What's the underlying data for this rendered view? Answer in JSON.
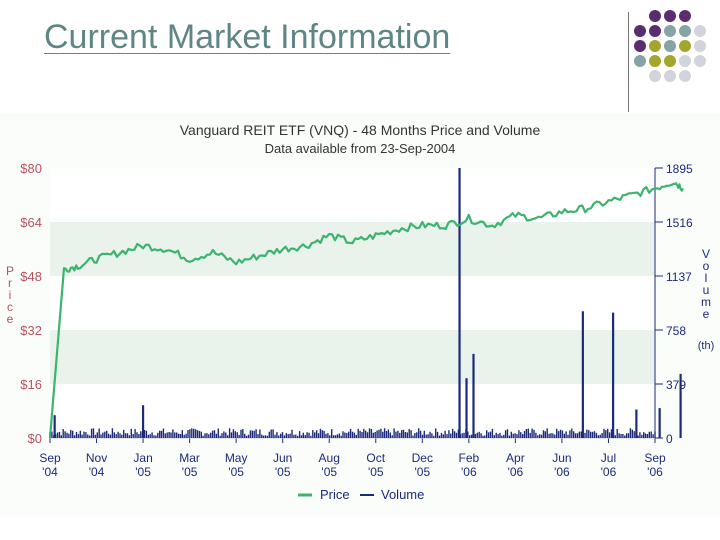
{
  "slide": {
    "title": "Current Market Information"
  },
  "decor": {
    "dot_colors": [
      "#5b2d6e",
      "#a3a62b",
      "#86a3a6",
      "#d3d3dc"
    ],
    "dot_grid": [
      [
        -1,
        0,
        0,
        0,
        -1
      ],
      [
        0,
        0,
        2,
        2,
        3
      ],
      [
        0,
        1,
        2,
        1,
        3
      ],
      [
        2,
        1,
        1,
        3,
        3
      ],
      [
        -1,
        3,
        3,
        3,
        -1
      ]
    ]
  },
  "colors": {
    "price": "#3cb46e",
    "volume": "#1c2a7c",
    "label": "#b5515e",
    "axis_text": "#1c2a7c",
    "band": "#e9f3ec"
  },
  "chart_data": {
    "type": "line",
    "title": "Vanguard REIT ETF (VNQ) - 48 Months Price and Volume",
    "subtitle": "Data available from 23-Sep-2004",
    "ylabel_left": "Price",
    "ylabel_right": "Volume",
    "ylabel_right_unit": "(th)",
    "y_left_ticks": [
      "$0",
      "$16",
      "$32",
      "$48",
      "$64",
      "$80"
    ],
    "y_left_range": [
      0,
      80
    ],
    "y_right_ticks": [
      "0",
      "379",
      "758",
      "1137",
      "1516",
      "1895"
    ],
    "y_right_range": [
      0,
      1895
    ],
    "x_ticks": [
      [
        "Sep",
        "'04"
      ],
      [
        "Nov",
        "'04"
      ],
      [
        "Jan",
        "'05"
      ],
      [
        "Mar",
        "'05"
      ],
      [
        "May",
        "'05"
      ],
      [
        "Jun",
        "'05"
      ],
      [
        "Aug",
        "'05"
      ],
      [
        "Oct",
        "'05"
      ],
      [
        "Dec",
        "'05"
      ],
      [
        "Feb",
        "'06"
      ],
      [
        "Apr",
        "'06"
      ],
      [
        "Jun",
        "'06"
      ],
      [
        "Jul",
        "'06"
      ],
      [
        "Sep",
        "'06"
      ]
    ],
    "grid": "horizontal bands",
    "legend": [
      "Price",
      "Volume"
    ],
    "legend_position": "bottom",
    "price_series": {
      "name": "Price",
      "x": [
        0.0,
        0.3,
        0.6,
        1.0,
        1.5,
        2.0,
        2.5,
        3.0,
        3.5,
        4.0,
        4.5,
        5.0,
        5.5,
        6.0,
        6.5,
        7.0,
        7.5,
        8.0,
        8.5,
        9.0,
        9.5,
        10.0,
        10.5,
        11.0,
        11.5,
        12.0,
        12.5,
        13.0,
        13.4,
        13.6
      ],
      "values": [
        0,
        50,
        51,
        53,
        55,
        57,
        56,
        53,
        55,
        52,
        54,
        56,
        57,
        60,
        58,
        60,
        62,
        63,
        63,
        65,
        63,
        66,
        65,
        67,
        68,
        70,
        72,
        74,
        76,
        74
      ]
    },
    "volume_series": {
      "name": "Volume",
      "base_level": 60,
      "spikes": [
        {
          "x": 0.1,
          "value": 160
        },
        {
          "x": 2.0,
          "value": 230
        },
        {
          "x": 8.8,
          "value": 1895
        },
        {
          "x": 8.95,
          "value": 420
        },
        {
          "x": 9.1,
          "value": 590
        },
        {
          "x": 11.45,
          "value": 890
        },
        {
          "x": 12.1,
          "value": 880
        },
        {
          "x": 12.6,
          "value": 200
        },
        {
          "x": 13.1,
          "value": 210
        },
        {
          "x": 13.55,
          "value": 450
        }
      ]
    }
  }
}
